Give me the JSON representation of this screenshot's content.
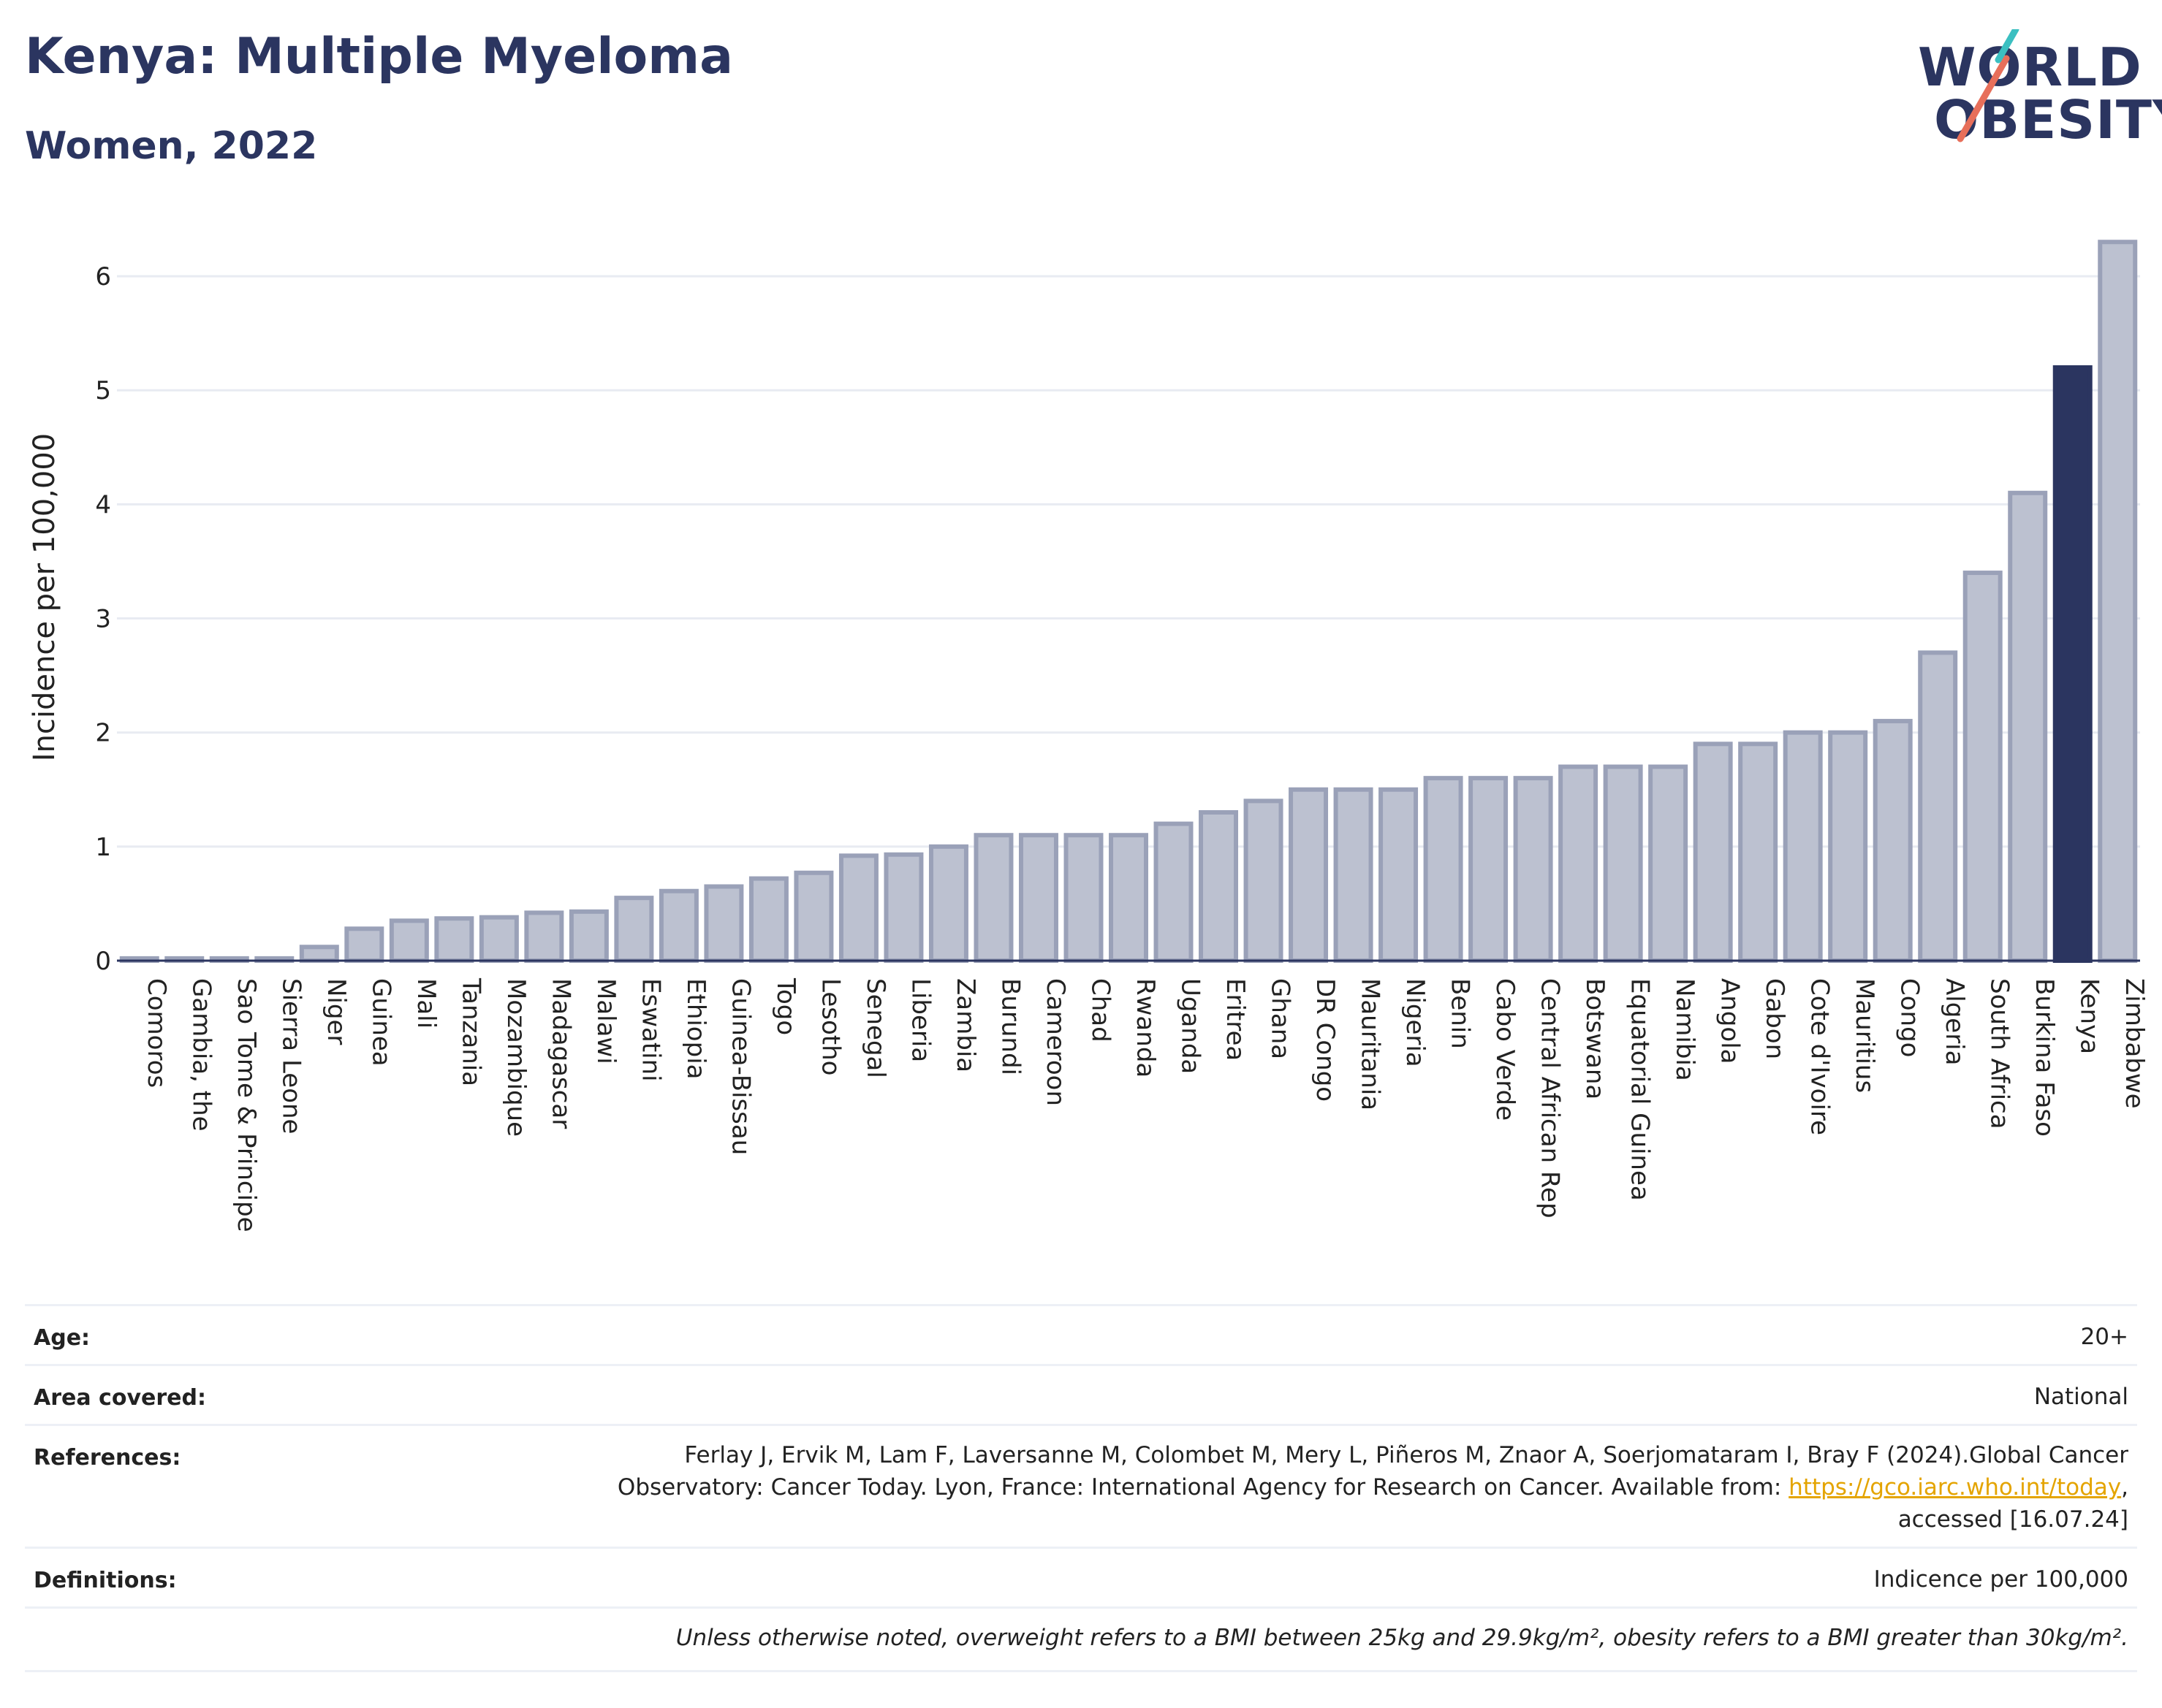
{
  "header": {
    "title": "Kenya: Multiple Myeloma",
    "subtitle": "Women, 2022"
  },
  "logo": {
    "line1": "WORLD",
    "line2": "OBESITY",
    "slash_colors": [
      "#3bbfc1",
      "#e76f5a"
    ]
  },
  "colors": {
    "highlight": "#2b3560",
    "bar": "#bcc1d0",
    "bar_border": "#9aa1b8",
    "grid": "#e8ebf2"
  },
  "chart_data": {
    "type": "bar",
    "ylabel": "Incidence per 100,000",
    "ylim": [
      0,
      6.5
    ],
    "yticks": [
      0,
      1,
      2,
      3,
      4,
      5,
      6
    ],
    "highlight": "Kenya",
    "categories": [
      "Comoros",
      "Gambia, the",
      "Sao Tome & Principe",
      "Sierra Leone",
      "Niger",
      "Guinea",
      "Mali",
      "Tanzania",
      "Mozambique",
      "Madagascar",
      "Malawi",
      "Eswatini",
      "Ethiopia",
      "Guinea-Bissau",
      "Togo",
      "Lesotho",
      "Senegal",
      "Liberia",
      "Zambia",
      "Burundi",
      "Cameroon",
      "Chad",
      "Rwanda",
      "Uganda",
      "Eritrea",
      "Ghana",
      "DR Congo",
      "Mauritania",
      "Nigeria",
      "Benin",
      "Cabo Verde",
      "Central African Rep",
      "Botswana",
      "Equatorial Guinea",
      "Namibia",
      "Angola",
      "Gabon",
      "Cote d'Ivoire",
      "Mauritius",
      "Congo",
      "Algeria",
      "South Africa",
      "Burkina Faso",
      "Kenya",
      "Zimbabwe"
    ],
    "values": [
      0.02,
      0.02,
      0.02,
      0.02,
      0.12,
      0.28,
      0.35,
      0.37,
      0.38,
      0.42,
      0.43,
      0.55,
      0.61,
      0.65,
      0.72,
      0.77,
      0.92,
      0.93,
      1.0,
      1.1,
      1.1,
      1.1,
      1.1,
      1.2,
      1.3,
      1.4,
      1.5,
      1.5,
      1.5,
      1.6,
      1.6,
      1.6,
      1.7,
      1.7,
      1.7,
      1.9,
      1.9,
      2.0,
      2.0,
      2.1,
      2.7,
      3.4,
      4.1,
      5.2,
      6.3
    ]
  },
  "info": {
    "age_label": "Age:",
    "age_value": "20+",
    "area_label": "Area covered:",
    "area_value": "National",
    "references_label": "References:",
    "references_line1": "Ferlay J, Ervik M, Lam F, Laversanne M, Colombet M, Mery L, Piñeros M, Znaor A, Soerjomataram I, Bray F (2024).Global Cancer",
    "references_line2_pre": "Observatory: Cancer Today. Lyon, France: International Agency for Research on Cancer. Available from: ",
    "references_link": "https://gco.iarc.who.int/today",
    "references_line2_post": ",",
    "references_line3": "accessed [16.07.24]",
    "definitions_label": "Definitions:",
    "definitions_value": "Indicence per 100,000",
    "note": "Unless otherwise noted, overweight refers to a BMI between 25kg and 29.9kg/m², obesity refers to a BMI greater than 30kg/m²."
  }
}
